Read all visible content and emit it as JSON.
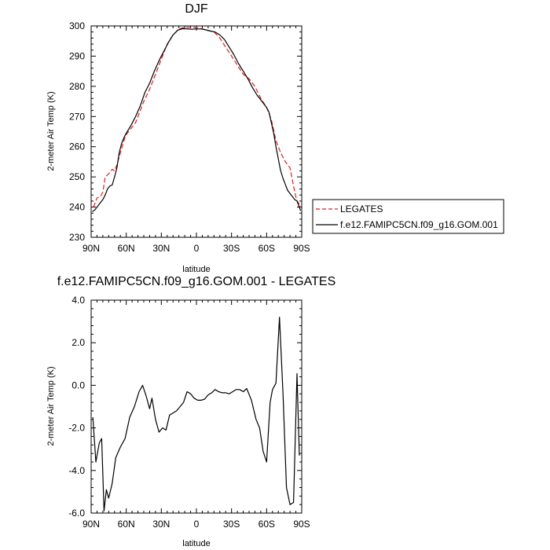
{
  "chart_data": [
    {
      "type": "line",
      "title": "DJF",
      "xlabel": "latitude",
      "ylabel": "2-meter Air Temp (K)",
      "xlim": [
        90,
        -90
      ],
      "ylim": [
        230,
        300
      ],
      "xticks": [
        {
          "value": 90,
          "label": "90N"
        },
        {
          "value": 60,
          "label": "60N"
        },
        {
          "value": 30,
          "label": "30N"
        },
        {
          "value": 0,
          "label": "0"
        },
        {
          "value": -30,
          "label": "30S"
        },
        {
          "value": -60,
          "label": "60S"
        },
        {
          "value": -90,
          "label": "90S"
        }
      ],
      "yticks": [
        {
          "value": 230,
          "label": "230"
        },
        {
          "value": 240,
          "label": "240"
        },
        {
          "value": 250,
          "label": "250"
        },
        {
          "value": 260,
          "label": "260"
        },
        {
          "value": 270,
          "label": "270"
        },
        {
          "value": 280,
          "label": "280"
        },
        {
          "value": 290,
          "label": "290"
        },
        {
          "value": 300,
          "label": "300"
        }
      ],
      "legend": {
        "placement": "right",
        "entries": [
          {
            "name": "LEGATES",
            "color": "#e41a1c",
            "dash": true
          },
          {
            "name": "f.e12.FAMIPC5CN.f09_g16.GOM.001",
            "color": "#000000",
            "dash": false
          }
        ]
      },
      "series": [
        {
          "name": "LEGATES",
          "color": "#e41a1c",
          "dashed": true,
          "x": [
            88,
            85,
            82,
            80,
            78,
            75,
            72,
            70,
            68,
            65,
            62,
            60,
            56,
            52,
            48,
            45,
            40,
            35,
            30,
            25,
            20,
            15,
            10,
            5,
            0,
            -5,
            -10,
            -15,
            -20,
            -25,
            -30,
            -35,
            -40,
            -45,
            -50,
            -55,
            -60,
            -64,
            -68,
            -72,
            -76,
            -80,
            -84,
            -86,
            -88,
            -89
          ],
          "y": [
            240,
            243,
            243.5,
            245,
            250,
            251,
            252.5,
            252,
            254,
            258,
            262,
            264,
            266,
            268,
            272,
            275,
            279,
            284,
            289,
            294,
            297,
            299,
            299.5,
            299.5,
            299.5,
            299,
            298.5,
            298,
            296,
            293,
            290,
            287,
            284,
            282.5,
            280,
            276,
            273,
            269,
            262,
            258,
            255,
            253,
            245,
            242,
            241,
            240
          ]
        },
        {
          "name": "f.e12.FAMIPC5CN.f09_g16.GOM.001",
          "color": "#000000",
          "dashed": false,
          "x": [
            89,
            87,
            85,
            82,
            80,
            78,
            76,
            74,
            72,
            70,
            68,
            66,
            64,
            62,
            60,
            56,
            52,
            48,
            44,
            40,
            36,
            32,
            28,
            24,
            20,
            16,
            12,
            8,
            4,
            0,
            -4,
            -8,
            -12,
            -16,
            -20,
            -24,
            -28,
            -32,
            -36,
            -40,
            -44,
            -48,
            -52,
            -56,
            -60,
            -62,
            -64,
            -66,
            -68,
            -70,
            -72,
            -74,
            -76,
            -78,
            -80,
            -82,
            -84,
            -86,
            -88,
            -89
          ],
          "y": [
            238.5,
            239,
            240,
            241.5,
            242.5,
            244,
            246,
            247,
            247.3,
            250,
            253,
            258,
            261,
            263,
            264.5,
            267,
            270,
            273.5,
            278,
            281,
            285,
            288.5,
            291.5,
            294.5,
            297,
            298.6,
            299.1,
            299,
            298.9,
            299,
            299,
            298.7,
            298.3,
            298,
            297,
            295.5,
            293,
            290.5,
            287.5,
            285,
            282.5,
            279.5,
            277,
            275,
            273,
            271.5,
            268,
            264.5,
            260,
            256,
            252,
            249.5,
            247.5,
            245.5,
            244.5,
            243.5,
            242.5,
            242,
            240,
            238.8
          ]
        }
      ]
    },
    {
      "type": "line",
      "title": "f.e12.FAMIPC5CN.f09_g16.GOM.001 - LEGATES",
      "xlabel": "latitude",
      "ylabel": "2-meter Air Temp (K)",
      "xlim": [
        90,
        -90
      ],
      "ylim": [
        -6,
        4
      ],
      "xticks": [
        {
          "value": 90,
          "label": "90N"
        },
        {
          "value": 60,
          "label": "60N"
        },
        {
          "value": 30,
          "label": "30N"
        },
        {
          "value": 0,
          "label": "0"
        },
        {
          "value": -30,
          "label": "30S"
        },
        {
          "value": -60,
          "label": "60S"
        },
        {
          "value": -90,
          "label": "90S"
        }
      ],
      "yticks": [
        {
          "value": -6,
          "label": "-6.0"
        },
        {
          "value": -4,
          "label": "-4.0"
        },
        {
          "value": -2,
          "label": "-2.0"
        },
        {
          "value": 0,
          "label": "0.0"
        },
        {
          "value": 2,
          "label": "2.0"
        },
        {
          "value": 4,
          "label": "4.0"
        }
      ],
      "series": [
        {
          "color": "#000000",
          "dashed": false,
          "x": [
            88.5,
            86,
            83,
            81,
            79,
            77,
            75,
            72,
            69,
            65,
            61,
            57,
            53,
            49,
            46,
            43,
            40,
            38,
            35,
            32,
            29,
            26,
            23,
            20,
            17,
            14,
            11,
            8,
            5,
            2,
            -1,
            -4,
            -7,
            -10,
            -13,
            -16,
            -19,
            -22,
            -25,
            -28,
            -31,
            -34,
            -37,
            -40,
            -43,
            -47,
            -51,
            -54,
            -57,
            -60,
            -63,
            -65,
            -68,
            -71,
            -74,
            -77,
            -80,
            -83,
            -86,
            -88
          ],
          "y": [
            -1.5,
            -3.6,
            -2.7,
            -2.5,
            -5.9,
            -4.9,
            -5.3,
            -4.6,
            -3.4,
            -2.9,
            -2.5,
            -1.5,
            -1,
            -0.3,
            0,
            -0.5,
            -1.1,
            -0.6,
            -1.6,
            -2.2,
            -2,
            -2.1,
            -1.4,
            -1.3,
            -1.2,
            -1,
            -0.8,
            -0.3,
            -0.4,
            -0.6,
            -0.7,
            -0.7,
            -0.65,
            -0.45,
            -0.35,
            -0.2,
            -0.3,
            -0.35,
            -0.35,
            -0.4,
            -0.3,
            -0.2,
            -0.2,
            -0.3,
            -0.15,
            -0.7,
            -1.6,
            -2,
            -3.1,
            -3.6,
            -0.8,
            -0.2,
            0.1,
            3.2,
            -0.4,
            -4.8,
            -5.6,
            -5.5,
            0.55,
            -3.3
          ]
        }
      ]
    }
  ]
}
